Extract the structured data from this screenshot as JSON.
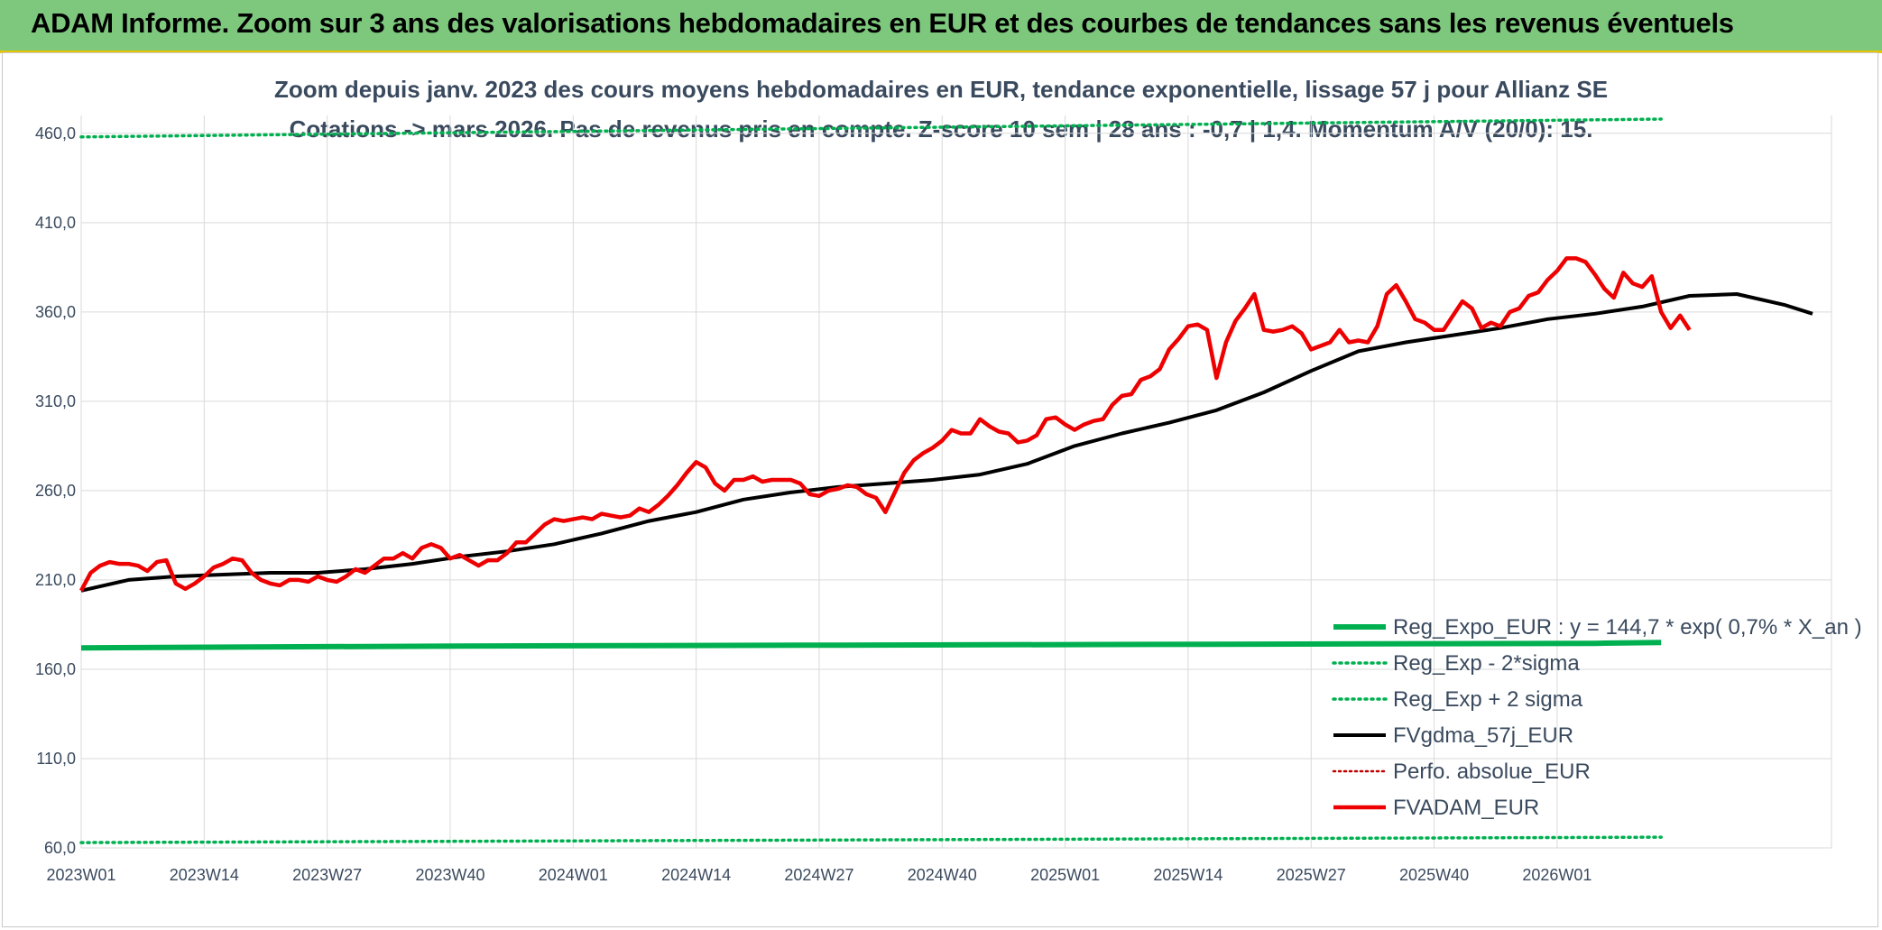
{
  "banner": {
    "title": "ADAM Informe. Zoom sur 3 ans des valorisations hebdomadaires en EUR et des courbes de tendances sans les revenus éventuels"
  },
  "chart_data": {
    "type": "line",
    "title": "Zoom depuis janv. 2023 des cours moyens hebdomadaires en EUR, tendance exponentielle, lissage 57 j pour Allianz SE",
    "subtitle": "Cotations -> mars 2026. Pas de revenus pris en compte. Z-score 10 sem | 28 ans : -0,7 | 1,4. Momentum A/V (20/0): 15.",
    "xlabel": "",
    "ylabel": "",
    "ylim": [
      60,
      470
    ],
    "y_ticks": [
      "460,0",
      "410,0",
      "360,0",
      "310,0",
      "260,0",
      "210,0",
      "160,0",
      "110,0",
      "60,0"
    ],
    "x_tick_labels": [
      "2023W01",
      "2023W14",
      "2023W27",
      "2023W40",
      "2024W01",
      "2024W14",
      "2024W27",
      "2024W40",
      "2025W01",
      "2025W14",
      "2025W27",
      "2025W40",
      "2026W01"
    ],
    "legend_position": "bottom-right",
    "grid": true,
    "colors": {
      "reg_expo": "#00b050",
      "sigma": "#00b050",
      "fvgdma": "#000000",
      "perfo": "#c00000",
      "fvadam": "#ee0000"
    },
    "series": [
      {
        "name": "Reg_Expo_EUR : y = 144,7 * exp( 0,7% *  X_an )",
        "style": "solid-thick",
        "points": [
          [
            0,
            172
          ],
          [
            40,
            173
          ],
          [
            80,
            173.5
          ],
          [
            120,
            174
          ],
          [
            160,
            174.5
          ],
          [
            167,
            175
          ]
        ]
      },
      {
        "name": "Reg_Exp - 2*sigma",
        "style": "dotted",
        "points": [
          [
            0,
            63
          ],
          [
            167,
            66
          ]
        ]
      },
      {
        "name": "Reg_Exp + 2 sigma",
        "style": "dotted",
        "points": [
          [
            0,
            458
          ],
          [
            167,
            468
          ]
        ]
      },
      {
        "name": "FVgdma_57j_EUR",
        "style": "solid",
        "points": [
          [
            0,
            204
          ],
          [
            5,
            210
          ],
          [
            10,
            212
          ],
          [
            15,
            213
          ],
          [
            20,
            214
          ],
          [
            25,
            214
          ],
          [
            30,
            216
          ],
          [
            35,
            219
          ],
          [
            40,
            223
          ],
          [
            45,
            226
          ],
          [
            50,
            230
          ],
          [
            55,
            236
          ],
          [
            60,
            243
          ],
          [
            65,
            248
          ],
          [
            70,
            255
          ],
          [
            75,
            259
          ],
          [
            80,
            262
          ],
          [
            85,
            264
          ],
          [
            90,
            266
          ],
          [
            95,
            269
          ],
          [
            100,
            275
          ],
          [
            105,
            285
          ],
          [
            110,
            292
          ],
          [
            115,
            298
          ],
          [
            120,
            305
          ],
          [
            125,
            315
          ],
          [
            130,
            327
          ],
          [
            135,
            338
          ],
          [
            140,
            343
          ],
          [
            145,
            347
          ],
          [
            150,
            351
          ],
          [
            155,
            356
          ],
          [
            160,
            359
          ],
          [
            165,
            363
          ],
          [
            170,
            369
          ],
          [
            175,
            370
          ],
          [
            180,
            364
          ],
          [
            183,
            359
          ]
        ]
      },
      {
        "name": "Perfo. absolue_EUR",
        "style": "dotted",
        "points": []
      },
      {
        "name": "FVADAM_EUR",
        "style": "solid-thick",
        "points": [
          [
            0,
            204
          ],
          [
            1,
            214
          ],
          [
            2,
            218
          ],
          [
            3,
            220
          ],
          [
            4,
            219
          ],
          [
            5,
            219
          ],
          [
            6,
            218
          ],
          [
            7,
            215
          ],
          [
            8,
            220
          ],
          [
            9,
            221
          ],
          [
            10,
            208
          ],
          [
            11,
            205
          ],
          [
            12,
            208
          ],
          [
            13,
            212
          ],
          [
            14,
            217
          ],
          [
            15,
            219
          ],
          [
            16,
            222
          ],
          [
            17,
            221
          ],
          [
            18,
            214
          ],
          [
            19,
            210
          ],
          [
            20,
            208
          ],
          [
            21,
            207
          ],
          [
            22,
            210
          ],
          [
            23,
            210
          ],
          [
            24,
            209
          ],
          [
            25,
            212
          ],
          [
            26,
            210
          ],
          [
            27,
            209
          ],
          [
            28,
            212
          ],
          [
            29,
            216
          ],
          [
            30,
            214
          ],
          [
            31,
            218
          ],
          [
            32,
            222
          ],
          [
            33,
            222
          ],
          [
            34,
            225
          ],
          [
            35,
            222
          ],
          [
            36,
            228
          ],
          [
            37,
            230
          ],
          [
            38,
            228
          ],
          [
            39,
            222
          ],
          [
            40,
            224
          ],
          [
            41,
            221
          ],
          [
            42,
            218
          ],
          [
            43,
            221
          ],
          [
            44,
            221
          ],
          [
            45,
            225
          ],
          [
            46,
            231
          ],
          [
            47,
            231
          ],
          [
            48,
            236
          ],
          [
            49,
            241
          ],
          [
            50,
            244
          ],
          [
            51,
            243
          ],
          [
            52,
            244
          ],
          [
            53,
            245
          ],
          [
            54,
            244
          ],
          [
            55,
            247
          ],
          [
            56,
            246
          ],
          [
            57,
            245
          ],
          [
            58,
            246
          ],
          [
            59,
            250
          ],
          [
            60,
            248
          ],
          [
            61,
            252
          ],
          [
            62,
            257
          ],
          [
            63,
            263
          ],
          [
            64,
            270
          ],
          [
            65,
            276
          ],
          [
            66,
            273
          ],
          [
            67,
            264
          ],
          [
            68,
            260
          ],
          [
            69,
            266
          ],
          [
            70,
            266
          ],
          [
            71,
            268
          ],
          [
            72,
            265
          ],
          [
            73,
            266
          ],
          [
            74,
            266
          ],
          [
            75,
            266
          ],
          [
            76,
            264
          ],
          [
            77,
            258
          ],
          [
            78,
            257
          ],
          [
            79,
            260
          ],
          [
            80,
            261
          ],
          [
            81,
            263
          ],
          [
            82,
            262
          ],
          [
            83,
            258
          ],
          [
            84,
            256
          ],
          [
            85,
            248
          ],
          [
            86,
            259
          ],
          [
            87,
            270
          ],
          [
            88,
            277
          ],
          [
            89,
            281
          ],
          [
            90,
            284
          ],
          [
            91,
            288
          ],
          [
            92,
            294
          ],
          [
            93,
            292
          ],
          [
            94,
            292
          ],
          [
            95,
            300
          ],
          [
            96,
            296
          ],
          [
            97,
            293
          ],
          [
            98,
            292
          ],
          [
            99,
            287
          ],
          [
            100,
            288
          ],
          [
            101,
            291
          ],
          [
            102,
            300
          ],
          [
            103,
            301
          ],
          [
            104,
            297
          ],
          [
            105,
            294
          ],
          [
            106,
            297
          ],
          [
            107,
            299
          ],
          [
            108,
            300
          ],
          [
            109,
            308
          ],
          [
            110,
            313
          ],
          [
            111,
            314
          ],
          [
            112,
            322
          ],
          [
            113,
            324
          ],
          [
            114,
            328
          ],
          [
            115,
            339
          ],
          [
            116,
            345
          ],
          [
            117,
            352
          ],
          [
            118,
            353
          ],
          [
            119,
            350
          ],
          [
            120,
            323
          ],
          [
            121,
            343
          ],
          [
            122,
            355
          ],
          [
            123,
            362
          ],
          [
            124,
            370
          ],
          [
            125,
            350
          ],
          [
            126,
            349
          ],
          [
            127,
            350
          ],
          [
            128,
            352
          ],
          [
            129,
            348
          ],
          [
            130,
            339
          ],
          [
            131,
            341
          ],
          [
            132,
            343
          ],
          [
            133,
            350
          ],
          [
            134,
            343
          ],
          [
            135,
            344
          ],
          [
            136,
            343
          ],
          [
            137,
            352
          ],
          [
            138,
            370
          ],
          [
            139,
            375
          ],
          [
            140,
            366
          ],
          [
            141,
            356
          ],
          [
            142,
            354
          ],
          [
            143,
            350
          ],
          [
            144,
            350
          ],
          [
            145,
            358
          ],
          [
            146,
            366
          ],
          [
            147,
            362
          ],
          [
            148,
            351
          ],
          [
            149,
            354
          ],
          [
            150,
            352
          ],
          [
            151,
            360
          ],
          [
            152,
            362
          ],
          [
            153,
            369
          ],
          [
            154,
            371
          ],
          [
            155,
            378
          ],
          [
            156,
            383
          ],
          [
            157,
            390
          ],
          [
            158,
            390
          ],
          [
            159,
            388
          ],
          [
            160,
            381
          ],
          [
            161,
            373
          ],
          [
            162,
            368
          ],
          [
            163,
            382
          ],
          [
            164,
            376
          ],
          [
            165,
            374
          ],
          [
            166,
            380
          ],
          [
            167,
            360
          ],
          [
            168,
            351
          ],
          [
            169,
            358
          ],
          [
            170,
            350
          ]
        ]
      }
    ]
  }
}
